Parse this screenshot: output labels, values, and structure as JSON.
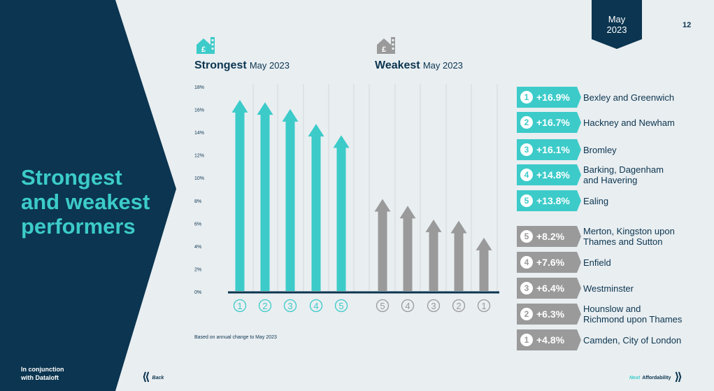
{
  "page": {
    "title_lines": [
      "Strongest",
      "and weakest",
      "performers"
    ],
    "partner_lines": [
      "In conjunction",
      "with Dataloft"
    ],
    "date_lines": [
      "May",
      "2023"
    ],
    "page_number": "12"
  },
  "sections": {
    "strongest": {
      "title": "Strongest",
      "subtitle": "May 2023",
      "icon": "house-pound-icon"
    },
    "weakest": {
      "title": "Weakest",
      "subtitle": "May 2023",
      "icon": "house-pound-icon"
    }
  },
  "footnote": "Based on annual change to May 2023",
  "colors": {
    "teal": "#3ccbc9",
    "grey": "#9a9a9a",
    "navy": "#0b3550"
  },
  "chart_data": {
    "type": "bar",
    "ylim": [
      0,
      18
    ],
    "y_ticks": [
      "0%",
      "2%",
      "4%",
      "6%",
      "8%",
      "10%",
      "12%",
      "14%",
      "16%",
      "18%"
    ],
    "categories": [
      "1",
      "2",
      "3",
      "4",
      "5",
      "5",
      "4",
      "3",
      "2",
      "1"
    ],
    "series": [
      {
        "values": [
          16.9,
          16.7,
          16.1,
          14.8,
          13.8,
          null,
          null,
          null,
          null,
          null
        ]
      },
      {
        "values": [
          null,
          null,
          null,
          null,
          null,
          8.2,
          7.6,
          6.4,
          6.3,
          4.8
        ]
      }
    ]
  },
  "strongest_list": [
    {
      "rank": "1",
      "pct": "+16.9%",
      "lines": [
        "Bexley and Greenwich"
      ]
    },
    {
      "rank": "2",
      "pct": "+16.7%",
      "lines": [
        "Hackney and Newham"
      ]
    },
    {
      "rank": "3",
      "pct": "+16.1%",
      "lines": [
        "Bromley"
      ]
    },
    {
      "rank": "4",
      "pct": "+14.8%",
      "lines": [
        "Barking, Dagenham",
        "and Havering"
      ]
    },
    {
      "rank": "5",
      "pct": "+13.8%",
      "lines": [
        "Ealing"
      ]
    }
  ],
  "weakest_list": [
    {
      "rank": "5",
      "pct": "+8.2%",
      "lines": [
        "Merton, Kingston upon",
        "Thames and Sutton"
      ]
    },
    {
      "rank": "4",
      "pct": "+7.6%",
      "lines": [
        "Enfield"
      ]
    },
    {
      "rank": "3",
      "pct": "+6.4%",
      "lines": [
        "Westminster"
      ]
    },
    {
      "rank": "2",
      "pct": "+6.3%",
      "lines": [
        "Hounslow and",
        "Richmond upon Thames"
      ]
    },
    {
      "rank": "1",
      "pct": "+4.8%",
      "lines": [
        "Camden, City of London"
      ]
    }
  ],
  "nav": {
    "back_label": "Back",
    "next_label": "Next",
    "next_target": "Affordability"
  }
}
